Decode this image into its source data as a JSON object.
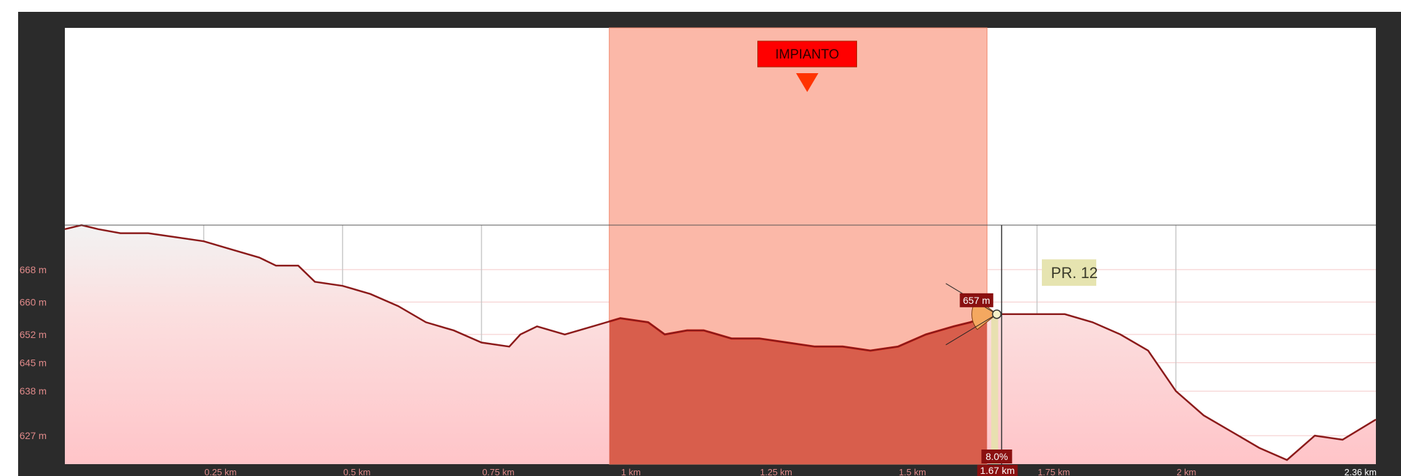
{
  "chart_data": {
    "type": "area",
    "xlabel": "",
    "ylabel": "",
    "xlim": [
      0,
      2.36
    ],
    "ylim": [
      620,
      700
    ],
    "y_ticks": [
      {
        "value": 627,
        "label": "627 m"
      },
      {
        "value": 638,
        "label": "638 m"
      },
      {
        "value": 645,
        "label": "645 m"
      },
      {
        "value": 652,
        "label": "652 m"
      },
      {
        "value": 660,
        "label": "660 m"
      },
      {
        "value": 668,
        "label": "668 m"
      }
    ],
    "x_ticks": [
      {
        "value": 0.25,
        "label": "0.25 km"
      },
      {
        "value": 0.5,
        "label": "0.5 km"
      },
      {
        "value": 0.75,
        "label": "0.75 km"
      },
      {
        "value": 1.0,
        "label": "1 km"
      },
      {
        "value": 1.25,
        "label": "1.25 km"
      },
      {
        "value": 1.5,
        "label": "1.5 km"
      },
      {
        "value": 1.75,
        "label": "1.75 km"
      },
      {
        "value": 2.0,
        "label": "2 km"
      },
      {
        "value": 2.36,
        "label": "2.36 km"
      }
    ],
    "series": [
      {
        "x": [
          0,
          0.03,
          0.06,
          0.1,
          0.15,
          0.2,
          0.25,
          0.3,
          0.35,
          0.38,
          0.42,
          0.45,
          0.5,
          0.55,
          0.6,
          0.65,
          0.7,
          0.75,
          0.8,
          0.82,
          0.85,
          0.9,
          0.95,
          1.0,
          1.05,
          1.08,
          1.12,
          1.15,
          1.2,
          1.25,
          1.3,
          1.35,
          1.4,
          1.45,
          1.5,
          1.55,
          1.6,
          1.63,
          1.67,
          1.7,
          1.75,
          1.8,
          1.85,
          1.9,
          1.95,
          2.0,
          2.05,
          2.1,
          2.15,
          2.2,
          2.25,
          2.3,
          2.36
        ],
        "y": [
          678,
          679,
          678,
          677,
          677,
          676,
          675,
          673,
          671,
          669,
          669,
          665,
          664,
          662,
          659,
          655,
          653,
          650,
          649,
          652,
          654,
          652,
          654,
          656,
          655,
          652,
          653,
          653,
          651,
          651,
          650,
          649,
          649,
          648,
          649,
          652,
          654,
          655,
          657,
          657,
          657,
          657,
          655,
          652,
          648,
          638,
          632,
          628,
          624,
          621,
          627,
          626,
          631
        ]
      }
    ],
    "highlight_zone": {
      "label": "IMPIANTO",
      "x_start": 0.98,
      "x_end": 1.66,
      "color": "#ff2a00"
    },
    "cursor": {
      "x": 1.67,
      "x_label": "1.67 km",
      "y_label": "657 m",
      "slope_label": "8.0%"
    },
    "callout": {
      "x": 1.76,
      "y": 664,
      "label": "PR. 12"
    },
    "grid": true,
    "legend": "none",
    "colors": {
      "line": "#8b1a1a",
      "fill": "#ffc0c0",
      "zone_fill": "#fbb8a8",
      "cursor_band": "#e8e0b0"
    }
  }
}
